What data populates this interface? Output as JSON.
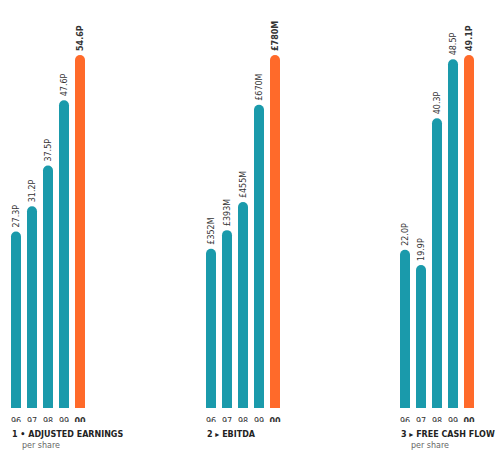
{
  "chart_data": [
    {
      "type": "bar",
      "title": "1 • ADJUSTED EARNINGS",
      "subtitle": "per share",
      "categories": [
        "96",
        "97",
        "98",
        "99",
        "00"
      ],
      "values": [
        27.3,
        31.2,
        37.5,
        47.6,
        54.6
      ],
      "value_labels": [
        "27.3P",
        "31.2P",
        "37.5P",
        "47.6P",
        "54.6P"
      ],
      "colors": [
        "#1a9aab",
        "#1a9aab",
        "#1a9aab",
        "#1a9aab",
        "#ff6a2a"
      ],
      "ylim": [
        0,
        54.6
      ],
      "tick_labels": "x",
      "data_labels": true,
      "grid": false
    },
    {
      "type": "bar",
      "title": "2 ▸ EBITDA",
      "categories": [
        "96",
        "97",
        "98",
        "99",
        "00"
      ],
      "values": [
        352,
        393,
        455,
        670,
        780
      ],
      "value_labels": [
        "£352M",
        "£393M",
        "£455M",
        "£670M",
        "£780M"
      ],
      "colors": [
        "#1a9aab",
        "#1a9aab",
        "#1a9aab",
        "#1a9aab",
        "#ff6a2a"
      ],
      "ylim": [
        0,
        780
      ],
      "tick_labels": "x",
      "data_labels": true,
      "grid": false
    },
    {
      "type": "bar",
      "title": "3 ▸ FREE CASH FLOW",
      "subtitle": "per share",
      "categories": [
        "96",
        "97",
        "98",
        "99",
        "00"
      ],
      "values": [
        22.0,
        19.9,
        40.3,
        48.5,
        49.1
      ],
      "value_labels": [
        "22.0P",
        "19.9P",
        "40.3P",
        "48.5P",
        "49.1P"
      ],
      "colors": [
        "#1a9aab",
        "#1a9aab",
        "#1a9aab",
        "#1a9aab",
        "#ff6a2a"
      ],
      "ylim": [
        0,
        49.1
      ],
      "tick_labels": "x",
      "data_labels": true,
      "grid": false
    }
  ]
}
